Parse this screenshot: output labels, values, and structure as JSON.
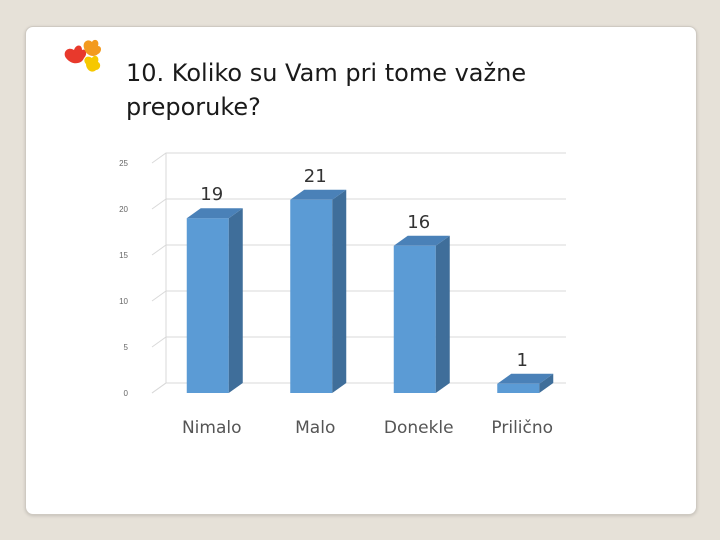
{
  "slide": {
    "title": "10. Koliko su Vam pri tome važne preporuke?"
  },
  "icons": {
    "logo": "hands-logo-icon"
  },
  "colors": {
    "bar_front": "#5b9bd5",
    "bar_side": "#3f6e9a",
    "bar_top": "#4a81b8",
    "grid": "#d9d9d9"
  },
  "chart_data": {
    "type": "bar",
    "categories": [
      "Nimalo",
      "Malo",
      "Donekle",
      "Prilično"
    ],
    "values": [
      19,
      21,
      16,
      1
    ],
    "data_labels": [
      "19",
      "21",
      "16",
      "1"
    ],
    "title": "",
    "xlabel": "",
    "ylabel": "",
    "ylim": [
      0,
      25
    ],
    "yticks": [
      0,
      5,
      10,
      15,
      20,
      25
    ],
    "grid": true,
    "style": "3d-column"
  }
}
